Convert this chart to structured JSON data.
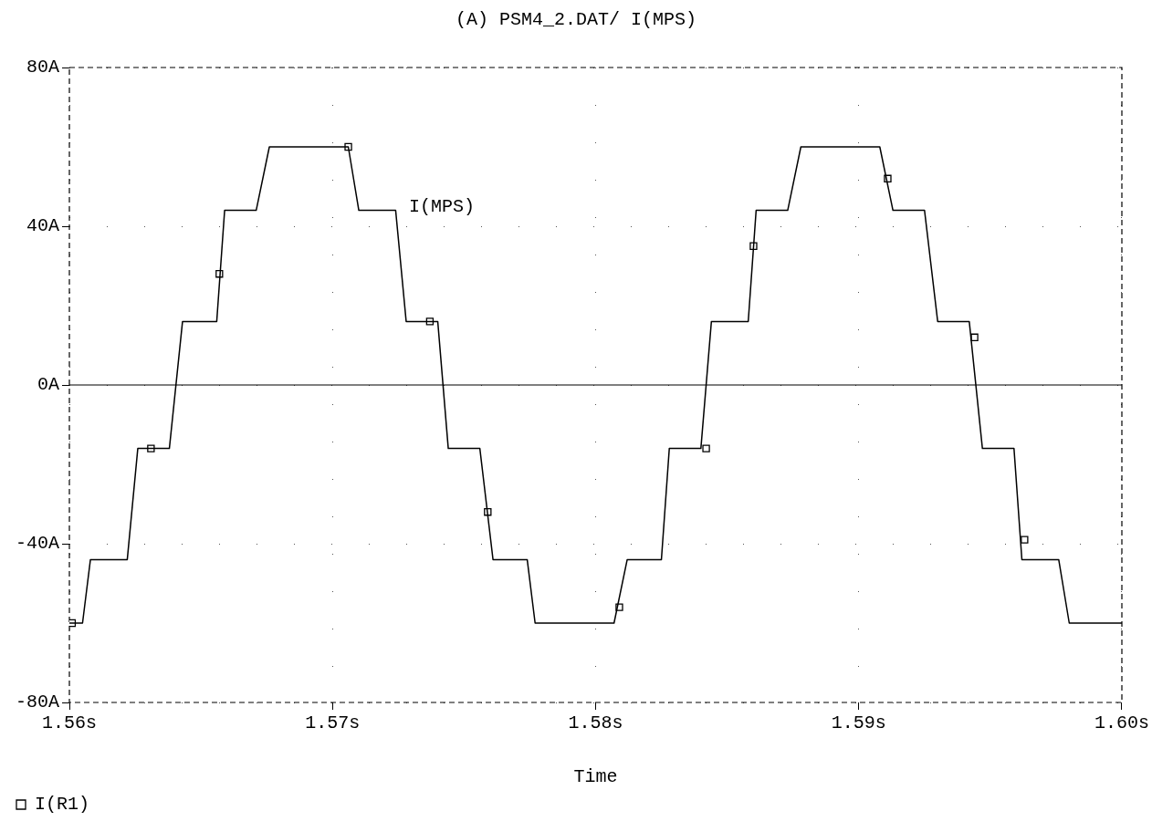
{
  "chart_data": {
    "type": "line",
    "title": "(A) PSM4_2.DAT/ I(MPS)",
    "xlabel": "Time",
    "xlim": [
      1.56,
      1.6
    ],
    "xticks": [
      {
        "value": 1.56,
        "label": "1.56s"
      },
      {
        "value": 1.57,
        "label": "1.57s"
      },
      {
        "value": 1.58,
        "label": "1.58s"
      },
      {
        "value": 1.59,
        "label": "1.59s"
      },
      {
        "value": 1.6,
        "label": "1.60s"
      }
    ],
    "ylim": [
      -80,
      80
    ],
    "yticks": [
      {
        "value": -80,
        "label": "-80A"
      },
      {
        "value": -40,
        "label": "-40A"
      },
      {
        "value": 0,
        "label": "0A"
      },
      {
        "value": 40,
        "label": "40A"
      },
      {
        "value": 80,
        "label": "80A"
      }
    ],
    "grid": true,
    "legend": "bottom left",
    "line_style": "solid",
    "ref_lines": [
      {
        "axis": "y",
        "value": 0,
        "color": "#000000"
      }
    ],
    "series": [
      {
        "type": "line",
        "name": "I(MPS)",
        "marker": "none",
        "color": "#000000",
        "x": [
          1.56,
          1.5605,
          1.5608,
          1.5622,
          1.5626,
          1.5638,
          1.5643,
          1.5656,
          1.5659,
          1.5671,
          1.5676,
          1.5706,
          1.571,
          1.5724,
          1.5728,
          1.574,
          1.5744,
          1.5756,
          1.5761,
          1.5774,
          1.5777,
          1.5807,
          1.5812,
          1.5825,
          1.5828,
          1.584,
          1.5844,
          1.5858,
          1.5861,
          1.5873,
          1.5878,
          1.5908,
          1.5913,
          1.5925,
          1.593,
          1.5942,
          1.5947,
          1.5959,
          1.5962,
          1.5976,
          1.598,
          1.6
        ],
        "values": [
          -60,
          -60,
          -44,
          -44,
          -16,
          -16,
          16,
          16,
          44,
          44,
          60,
          60,
          44,
          44,
          16,
          16,
          -16,
          -16,
          -44,
          -44,
          -60,
          -60,
          -44,
          -44,
          -16,
          -16,
          16,
          16,
          44,
          44,
          60,
          60,
          44,
          44,
          16,
          16,
          -16,
          -16,
          -44,
          -44,
          -60,
          -60
        ]
      },
      {
        "type": "scatter",
        "name": "I(R1)",
        "marker": "square",
        "color": "#000000",
        "x": [
          1.5601,
          1.5631,
          1.5657,
          1.5706,
          1.5737,
          1.5759,
          1.5809,
          1.5842,
          1.586,
          1.5911,
          1.5944,
          1.5963
        ],
        "values": [
          -60,
          -16,
          28,
          60,
          16,
          -32,
          -56,
          -16,
          35,
          52,
          12,
          -39
        ]
      }
    ]
  }
}
